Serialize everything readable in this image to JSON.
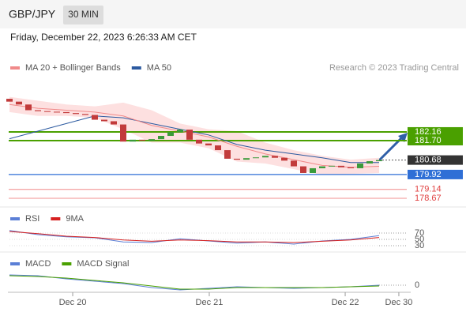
{
  "header": {
    "symbol": "GBP/JPY",
    "interval": "30 MIN",
    "timestamp": "Friday, December 22, 2023 6:26:33 AM CET"
  },
  "chart_data": {
    "type": "candlestick",
    "legend": [
      {
        "name": "MA 20 + Bollinger Bands",
        "color": "#f08a8a"
      },
      {
        "name": "MA 50",
        "color": "#2c5aa0"
      }
    ],
    "credit": "Research © 2023 Trading Central",
    "xlim": [
      0,
      43
    ],
    "xticks": [
      {
        "value": 6.67,
        "label": "Dec 20"
      },
      {
        "value": 21.08,
        "label": "Dec 21"
      },
      {
        "value": 35.42,
        "label": "Dec 22"
      },
      {
        "value": 41.08,
        "label": "Dec 30"
      }
    ],
    "ylim": [
      178.38,
      184.94
    ],
    "candles": {
      "up_color": "#3a9a3a",
      "down_color": "#c23b3b",
      "x": [
        0,
        1,
        2,
        3,
        4,
        5,
        6,
        7,
        8,
        9,
        10,
        11,
        12,
        13,
        14,
        15,
        16,
        17,
        18,
        19,
        20,
        21,
        22,
        23,
        24,
        25,
        26,
        27,
        28,
        29,
        30,
        31,
        32,
        33,
        34,
        35,
        36,
        37,
        38,
        39
      ],
      "open": [
        183.9,
        183.75,
        183.6,
        183.3,
        183.25,
        183.22,
        183.2,
        183.15,
        183.1,
        183.05,
        182.8,
        182.72,
        182.55,
        181.65,
        181.75,
        181.7,
        181.78,
        181.95,
        182.15,
        182.28,
        181.75,
        181.55,
        181.45,
        181.2,
        180.75,
        180.7,
        180.78,
        180.82,
        180.9,
        180.8,
        180.65,
        180.35,
        180.0,
        180.25,
        180.35,
        180.38,
        180.3,
        180.25,
        180.5,
        180.62
      ],
      "close": [
        183.75,
        183.6,
        183.3,
        183.25,
        183.22,
        183.2,
        183.15,
        183.1,
        183.05,
        182.8,
        182.72,
        182.55,
        181.65,
        181.75,
        181.7,
        181.78,
        181.95,
        182.15,
        182.28,
        181.75,
        181.55,
        181.45,
        181.2,
        180.75,
        180.7,
        180.78,
        180.82,
        180.9,
        180.8,
        180.65,
        180.35,
        180.0,
        180.25,
        180.35,
        180.38,
        180.3,
        180.25,
        180.5,
        180.62,
        180.68
      ]
    },
    "indicators": {
      "x": [
        0,
        3,
        6,
        9,
        12,
        15,
        18,
        21,
        24,
        27,
        30,
        33,
        36,
        39
      ],
      "ma20": [
        183.6,
        183.4,
        183.3,
        183.2,
        183.0,
        182.5,
        182.2,
        181.9,
        181.4,
        181.0,
        180.7,
        180.4,
        180.3,
        180.35
      ],
      "bb_upper": [
        184.0,
        183.8,
        183.6,
        183.5,
        183.7,
        183.3,
        182.6,
        182.3,
        182.2,
        181.6,
        181.2,
        180.9,
        180.7,
        180.8
      ],
      "bb_lower": [
        183.2,
        183.0,
        183.0,
        182.9,
        182.3,
        181.6,
        181.6,
        181.3,
        180.6,
        180.5,
        180.2,
        179.9,
        179.95,
        180.0
      ],
      "ma50": [
        181.8,
        182.2,
        182.6,
        183.0,
        182.9,
        182.6,
        182.3,
        182.0,
        181.5,
        181.2,
        181.0,
        180.8,
        180.55,
        180.55
      ],
      "band_color": "#fde0e0"
    },
    "levels": [
      {
        "value": 182.16,
        "label": "182.16",
        "color": "#4aa000",
        "boxed": true
      },
      {
        "value": 181.7,
        "label": "181.70",
        "color": "#4aa000",
        "boxed": true
      },
      {
        "value": 180.68,
        "label": "180.68",
        "color": "#333333",
        "boxed": true
      },
      {
        "value": 179.92,
        "label": "179.92",
        "color": "#2f6fd6",
        "boxed": true
      },
      {
        "value": 179.14,
        "label": "179.14",
        "color": "#e04040",
        "boxed": false
      },
      {
        "value": 178.67,
        "label": "178.67",
        "color": "#e04040",
        "boxed": false
      }
    ],
    "rsi": {
      "legend": [
        {
          "name": "RSI",
          "color": "#5b7fd6"
        },
        {
          "name": "9MA",
          "color": "#d62020"
        }
      ],
      "rsi": [
        78,
        65,
        58,
        55,
        42,
        40,
        52,
        45,
        38,
        42,
        35,
        45,
        50,
        62
      ],
      "ma": [
        75,
        68,
        60,
        56,
        48,
        44,
        48,
        46,
        42,
        42,
        40,
        44,
        48,
        56
      ],
      "ylim": [
        12.5,
        137.5
      ],
      "yticks": [
        70,
        50,
        30
      ]
    },
    "macd": {
      "legend": [
        {
          "name": "MACD",
          "color": "#5b7fd6"
        },
        {
          "name": "MACD Signal",
          "color": "#4aa000"
        }
      ],
      "macd": [
        0.13,
        0.12,
        0.08,
        0.05,
        0.02,
        -0.03,
        -0.06,
        -0.04,
        -0.02,
        -0.03,
        -0.04,
        -0.03,
        -0.02,
        0.0
      ],
      "signal": [
        0.12,
        0.11,
        0.09,
        0.06,
        0.03,
        -0.01,
        -0.05,
        -0.05,
        -0.03,
        -0.03,
        -0.03,
        -0.03,
        -0.02,
        -0.01
      ],
      "ylim": [
        -0.11,
        0.36
      ],
      "yticks": [
        0
      ]
    }
  }
}
